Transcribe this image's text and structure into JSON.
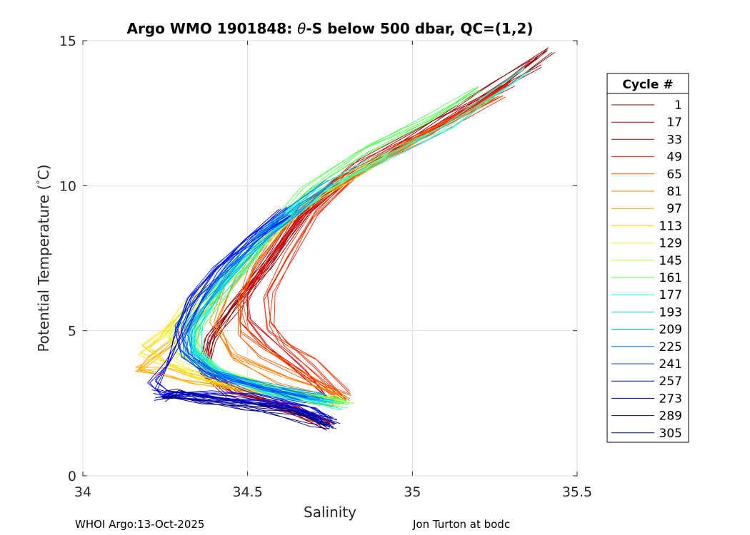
{
  "chart_data": {
    "type": "line",
    "title_prefix": "Argo WMO 1901848: ",
    "title_symbol": "θ",
    "title_suffix": "-S below 500 dbar,  QC=(1,2)",
    "xlabel": "Salinity",
    "ylabel_main": "Potential Temperature (",
    "ylabel_deg": "°",
    "ylabel_end": "C)",
    "xlim": [
      34,
      35.5
    ],
    "ylim": [
      0,
      15
    ],
    "xticks": [
      34,
      34.5,
      35,
      35.5
    ],
    "xtick_labels": [
      "34",
      "34.5",
      "35",
      "35.5"
    ],
    "yticks": [
      0,
      5,
      10,
      15
    ],
    "ytick_labels": [
      "0",
      "5",
      "10",
      "15"
    ],
    "grid": true,
    "legend_position": "right, outside axes",
    "legend_title": "Cycle #",
    "series": [
      {
        "name": "1",
        "color": "#800000",
        "points": [
          [
            34.76,
            1.7
          ],
          [
            34.62,
            2.4
          ],
          [
            34.45,
            2.9
          ],
          [
            34.36,
            3.6
          ],
          [
            34.38,
            4.6
          ],
          [
            34.45,
            5.7
          ],
          [
            34.56,
            7.3
          ],
          [
            34.68,
            9.3
          ],
          [
            34.84,
            10.6
          ],
          [
            35.05,
            11.9
          ],
          [
            35.25,
            13.3
          ],
          [
            35.41,
            14.6
          ]
        ]
      },
      {
        "name": "17",
        "color": "#a80000",
        "points": [
          [
            34.75,
            1.8
          ],
          [
            34.61,
            2.5
          ],
          [
            34.45,
            3.0
          ],
          [
            34.37,
            3.7
          ],
          [
            34.39,
            4.7
          ],
          [
            34.46,
            5.8
          ],
          [
            34.57,
            7.4
          ],
          [
            34.69,
            9.4
          ],
          [
            34.85,
            10.7
          ],
          [
            35.06,
            12.0
          ],
          [
            35.24,
            13.2
          ],
          [
            35.38,
            14.3
          ]
        ]
      },
      {
        "name": "33",
        "color": "#e00000",
        "points": [
          [
            34.76,
            2.6
          ],
          [
            34.67,
            3.5
          ],
          [
            34.56,
            4.5
          ],
          [
            34.5,
            5.3
          ],
          [
            34.5,
            6.2
          ],
          [
            34.56,
            7.4
          ],
          [
            34.66,
            9.0
          ],
          [
            34.82,
            10.5
          ],
          [
            35.05,
            11.8
          ],
          [
            35.3,
            13.5
          ]
        ]
      },
      {
        "name": "49",
        "color": "#ff2a00",
        "points": [
          [
            34.8,
            2.7
          ],
          [
            34.7,
            3.8
          ],
          [
            34.62,
            4.5
          ],
          [
            34.57,
            5.2
          ],
          [
            34.56,
            6.3
          ],
          [
            34.62,
            7.6
          ],
          [
            34.7,
            9.0
          ],
          [
            34.84,
            10.4
          ],
          [
            35.04,
            11.7
          ],
          [
            35.28,
            13.3
          ]
        ]
      },
      {
        "name": "65",
        "color": "#ff5500",
        "points": [
          [
            34.81,
            2.6
          ],
          [
            34.68,
            3.4
          ],
          [
            34.55,
            4.3
          ],
          [
            34.48,
            5.0
          ],
          [
            34.47,
            6.0
          ],
          [
            34.52,
            7.2
          ],
          [
            34.62,
            8.6
          ],
          [
            34.78,
            10.2
          ],
          [
            35.0,
            11.6
          ],
          [
            35.25,
            13.1
          ]
        ]
      },
      {
        "name": "81",
        "color": "#ff8000",
        "points": [
          [
            34.78,
            2.7
          ],
          [
            34.6,
            3.4
          ],
          [
            34.45,
            4.2
          ],
          [
            34.4,
            5.3
          ],
          [
            34.45,
            6.5
          ],
          [
            34.54,
            7.8
          ],
          [
            34.66,
            9.3
          ],
          [
            34.84,
            10.5
          ],
          [
            35.05,
            11.9
          ]
        ]
      },
      {
        "name": "97",
        "color": "#ffaa00",
        "points": [
          [
            34.76,
            2.6
          ],
          [
            34.5,
            3.0
          ],
          [
            34.33,
            3.3
          ],
          [
            34.25,
            3.5
          ],
          [
            34.17,
            3.6
          ],
          [
            34.2,
            4.0
          ],
          [
            34.27,
            4.7
          ],
          [
            34.33,
            5.4
          ],
          [
            34.42,
            6.3
          ]
        ]
      },
      {
        "name": "113",
        "color": "#ffe000",
        "points": [
          [
            34.77,
            2.6
          ],
          [
            34.52,
            3.0
          ],
          [
            34.34,
            3.4
          ],
          [
            34.24,
            3.9
          ],
          [
            34.18,
            4.4
          ],
          [
            34.24,
            5.0
          ],
          [
            34.3,
            5.7
          ],
          [
            34.36,
            6.4
          ]
        ]
      },
      {
        "name": "129",
        "color": "#d4ff2a",
        "points": [
          [
            34.78,
            2.5
          ],
          [
            34.55,
            2.9
          ],
          [
            34.38,
            3.5
          ],
          [
            34.28,
            4.2
          ],
          [
            34.26,
            4.9
          ],
          [
            34.32,
            5.6
          ],
          [
            34.4,
            6.5
          ],
          [
            34.5,
            7.5
          ]
        ]
      },
      {
        "name": "145",
        "color": "#aaff55",
        "points": [
          [
            34.8,
            2.5
          ],
          [
            34.58,
            3.0
          ],
          [
            34.42,
            3.6
          ],
          [
            34.34,
            4.4
          ],
          [
            34.34,
            5.2
          ],
          [
            34.4,
            6.2
          ],
          [
            34.48,
            7.2
          ],
          [
            34.58,
            8.5
          ],
          [
            34.72,
            9.8
          ],
          [
            34.92,
            11.1
          ]
        ]
      },
      {
        "name": "161",
        "color": "#55ff55",
        "points": [
          [
            34.8,
            2.5
          ],
          [
            34.56,
            3.0
          ],
          [
            34.4,
            3.7
          ],
          [
            34.34,
            4.5
          ],
          [
            34.36,
            5.3
          ],
          [
            34.42,
            6.3
          ],
          [
            34.5,
            7.4
          ],
          [
            34.56,
            8.5
          ],
          [
            34.68,
            9.9
          ],
          [
            34.86,
            11.2
          ],
          [
            35.05,
            12.2
          ],
          [
            35.2,
            13.3
          ]
        ]
      },
      {
        "name": "177",
        "color": "#2affd4",
        "points": [
          [
            34.78,
            2.5
          ],
          [
            34.58,
            2.9
          ],
          [
            34.42,
            3.5
          ],
          [
            34.34,
            4.3
          ],
          [
            34.34,
            5.2
          ],
          [
            34.4,
            6.2
          ],
          [
            34.48,
            7.3
          ],
          [
            34.58,
            8.5
          ],
          [
            34.72,
            9.8
          ],
          [
            34.88,
            10.7
          ],
          [
            35.1,
            12.0
          ],
          [
            35.34,
            14.0
          ]
        ]
      },
      {
        "name": "193",
        "color": "#00e0ff",
        "points": [
          [
            34.76,
            2.5
          ],
          [
            34.56,
            2.9
          ],
          [
            34.4,
            3.5
          ],
          [
            34.33,
            4.3
          ],
          [
            34.33,
            5.2
          ],
          [
            34.39,
            6.1
          ],
          [
            34.47,
            7.2
          ],
          [
            34.57,
            8.4
          ],
          [
            34.7,
            9.6
          ]
        ]
      },
      {
        "name": "209",
        "color": "#00aaff",
        "points": [
          [
            34.74,
            2.6
          ],
          [
            34.55,
            3.0
          ],
          [
            34.4,
            3.5
          ],
          [
            34.33,
            4.2
          ],
          [
            34.32,
            5.1
          ],
          [
            34.37,
            6.0
          ],
          [
            34.45,
            7.1
          ],
          [
            34.54,
            8.2
          ],
          [
            34.66,
            9.3
          ]
        ]
      },
      {
        "name": "225",
        "color": "#0080ff",
        "points": [
          [
            34.72,
            2.6
          ],
          [
            34.54,
            3.1
          ],
          [
            34.39,
            3.6
          ],
          [
            34.32,
            4.2
          ],
          [
            34.31,
            5.0
          ],
          [
            34.36,
            6.0
          ],
          [
            34.44,
            7.1
          ],
          [
            34.53,
            8.2
          ],
          [
            34.64,
            9.2
          ],
          [
            34.76,
            10.2
          ]
        ]
      },
      {
        "name": "241",
        "color": "#0040ff",
        "points": [
          [
            34.68,
            2.6
          ],
          [
            34.52,
            3.1
          ],
          [
            34.38,
            3.6
          ],
          [
            34.3,
            4.2
          ],
          [
            34.28,
            5.0
          ],
          [
            34.33,
            6.1
          ],
          [
            34.42,
            7.2
          ],
          [
            34.52,
            8.2
          ],
          [
            34.62,
            9.0
          ]
        ]
      },
      {
        "name": "257",
        "color": "#0000ff",
        "points": [
          [
            34.74,
            2.0
          ],
          [
            34.66,
            2.4
          ],
          [
            34.52,
            2.6
          ],
          [
            34.38,
            2.7
          ],
          [
            34.26,
            2.8
          ],
          [
            34.22,
            3.2
          ],
          [
            34.26,
            3.9
          ],
          [
            34.29,
            4.8
          ],
          [
            34.33,
            5.9
          ],
          [
            34.4,
            7.0
          ],
          [
            34.5,
            8.1
          ],
          [
            34.62,
            9.2
          ]
        ]
      },
      {
        "name": "273",
        "color": "#0000d4",
        "points": [
          [
            34.76,
            1.8
          ],
          [
            34.7,
            2.1
          ],
          [
            34.6,
            2.4
          ],
          [
            34.48,
            2.6
          ],
          [
            34.36,
            2.8
          ],
          [
            34.28,
            2.9
          ],
          [
            34.22,
            2.8
          ]
        ]
      },
      {
        "name": "289",
        "color": "#0000aa",
        "points": [
          [
            34.76,
            1.7
          ],
          [
            34.71,
            2.0
          ],
          [
            34.62,
            2.3
          ],
          [
            34.5,
            2.5
          ],
          [
            34.38,
            2.7
          ],
          [
            34.29,
            2.8
          ],
          [
            34.24,
            2.7
          ]
        ]
      },
      {
        "name": "305",
        "color": "#000080",
        "points": [
          [
            34.75,
            1.6
          ],
          [
            34.7,
            1.9
          ],
          [
            34.6,
            2.3
          ],
          [
            34.48,
            2.5
          ],
          [
            34.36,
            2.6
          ],
          [
            34.28,
            2.7
          ],
          [
            34.24,
            2.6
          ]
        ]
      }
    ]
  },
  "footer": {
    "left": "WHOI Argo:13-Oct-2025",
    "right": "Jon Turton at bodc"
  }
}
